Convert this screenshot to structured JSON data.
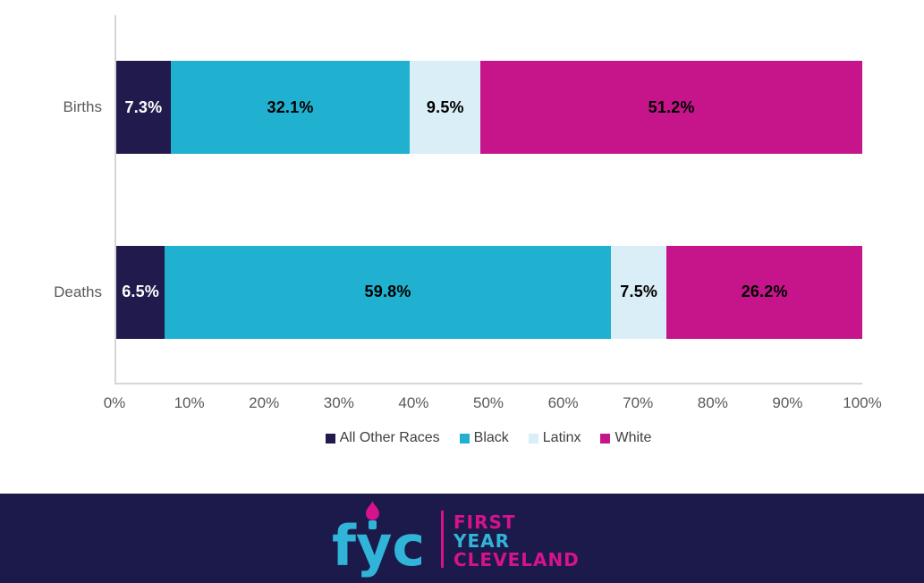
{
  "chart_data": {
    "type": "bar",
    "orientation": "horizontal-stacked",
    "title": "",
    "xlabel": "",
    "ylabel": "",
    "xlim": [
      0,
      100
    ],
    "grid": false,
    "legend_position": "bottom",
    "categories": [
      "Births",
      "Deaths"
    ],
    "series": [
      {
        "name": "All Other Races",
        "color": "#211b4d",
        "label_color": "#ffffff",
        "values": [
          7.3,
          6.5
        ]
      },
      {
        "name": "Black",
        "color": "#1fb1cf",
        "label_color": "#000000",
        "values": [
          32.1,
          59.8
        ]
      },
      {
        "name": "Latinx",
        "color": "#d9eef6",
        "label_color": "#000000",
        "values": [
          9.5,
          7.5
        ]
      },
      {
        "name": "White",
        "color": "#c6158b",
        "label_color": "#000000",
        "values": [
          51.2,
          26.2
        ]
      }
    ],
    "data_labels": {
      "births": [
        "7.3%",
        "32.1%",
        "9.5%",
        "51.2%"
      ],
      "deaths": [
        "6.5%",
        "59.8%",
        "7.5%",
        "26.2%"
      ]
    },
    "value_suffix": "%",
    "x_ticks": [
      "0%",
      "10%",
      "20%",
      "30%",
      "40%",
      "50%",
      "60%",
      "70%",
      "80%",
      "90%",
      "100%"
    ]
  },
  "colors": {
    "axis_line": "#d6d6d6",
    "tick_text": "#595959",
    "legend_text": "#404040",
    "footer_background": "#1c1a4a",
    "logo_cyan": "#30b4d8",
    "logo_pink": "#d6138c"
  },
  "footer": {
    "logo_acronym": "fyc",
    "line1": "FIRST",
    "line2": "YEAR",
    "line3": "CLEVELAND"
  }
}
